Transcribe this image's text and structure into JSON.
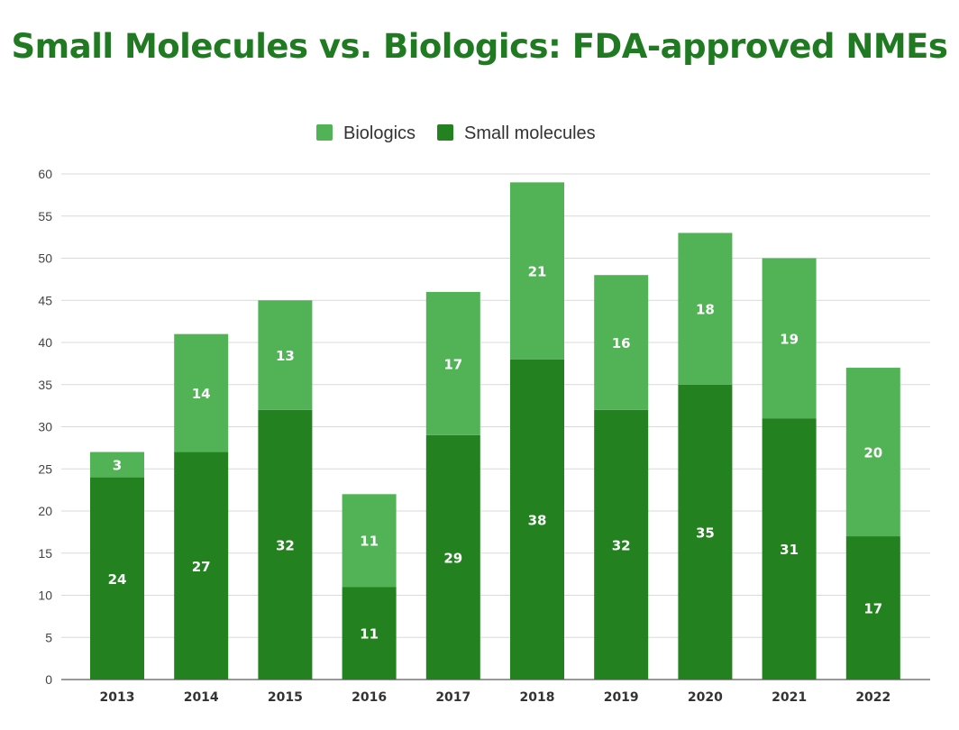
{
  "chart_data": {
    "type": "bar",
    "stacked": true,
    "title": "Small Molecules vs. Biologics: FDA-approved NMEs",
    "xlabel": "",
    "ylabel": "",
    "categories": [
      "2013",
      "2014",
      "2015",
      "2016",
      "2017",
      "2018",
      "2019",
      "2020",
      "2021",
      "2022"
    ],
    "series": [
      {
        "name": "Small molecules",
        "color": "#23811f",
        "values": [
          24,
          27,
          32,
          11,
          29,
          38,
          32,
          35,
          31,
          17
        ]
      },
      {
        "name": "Biologics",
        "color": "#52b356",
        "values": [
          3,
          14,
          13,
          11,
          17,
          21,
          16,
          18,
          19,
          20
        ]
      }
    ],
    "legend_order": [
      "Biologics",
      "Small molecules"
    ],
    "legend_position": "top",
    "ylim": [
      0,
      60
    ],
    "yticks": [
      0,
      5,
      10,
      15,
      20,
      25,
      30,
      35,
      40,
      45,
      50,
      55,
      60
    ],
    "grid": true,
    "title_color": "#1f7a22"
  }
}
